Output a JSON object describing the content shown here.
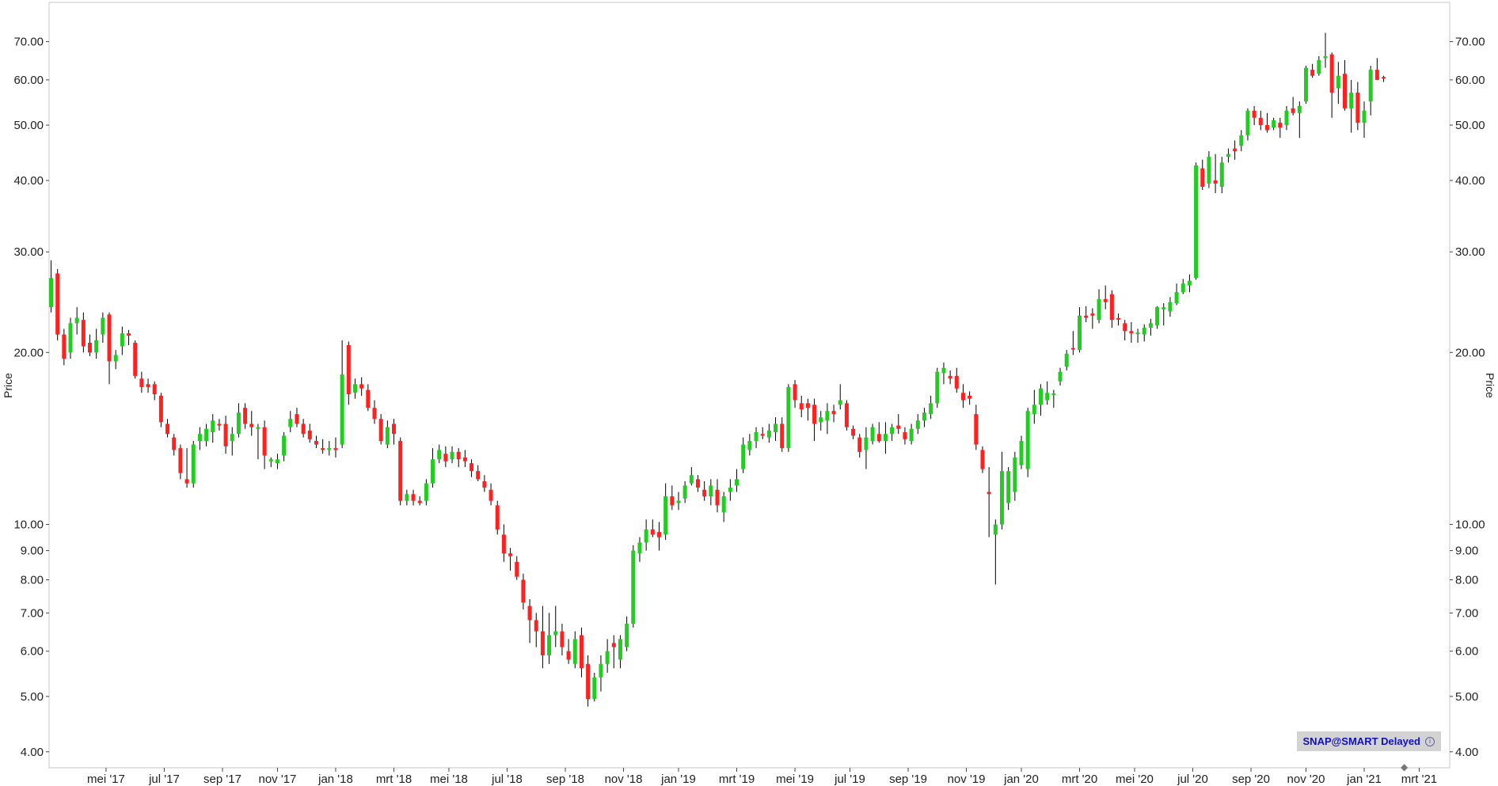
{
  "chart_data": {
    "type": "candlestick",
    "ylabel": "Price",
    "y_scale": "log",
    "ylim": [
      3.75,
      82
    ],
    "y_ticks": [
      "4.00",
      "5.00",
      "6.00",
      "7.00",
      "8.00",
      "9.00",
      "10.00",
      "20.00",
      "30.00",
      "40.00",
      "50.00",
      "60.00",
      "70.00"
    ],
    "x_ticks": [
      "mei '17",
      "jul '17",
      "sep '17",
      "nov '17",
      "jan '18",
      "mrt '18",
      "mei '18",
      "jul '18",
      "sep '18",
      "nov '18",
      "jan '19",
      "mrt '19",
      "mei '19",
      "jul '19",
      "sep '19",
      "nov '19",
      "jan '20",
      "mrt '20",
      "mei '20",
      "jul '20",
      "sep '20",
      "nov '20",
      "jan '21",
      "mrt '21"
    ],
    "x_tick_positions": [
      8.5,
      17.5,
      26.5,
      35,
      44,
      53,
      61.5,
      70.5,
      79.5,
      88.5,
      97,
      106,
      115,
      123.5,
      132.5,
      141.5,
      150,
      159,
      167.5,
      176.5,
      185.5,
      194,
      203,
      211.5
    ],
    "frequency": "weekly",
    "up_color": "#22cc22",
    "down_color": "#ff2020",
    "candles": [
      [
        24.0,
        29.0,
        23.5,
        27.0
      ],
      [
        27.5,
        28.0,
        21.0,
        21.5
      ],
      [
        21.5,
        22.0,
        19.0,
        19.5
      ],
      [
        20.0,
        23.0,
        19.5,
        22.5
      ],
      [
        22.5,
        24.0,
        21.5,
        23.0
      ],
      [
        22.8,
        23.5,
        20.0,
        20.5
      ],
      [
        20.8,
        21.5,
        19.7,
        20.0
      ],
      [
        20.0,
        22.0,
        19.5,
        21.0
      ],
      [
        21.5,
        23.5,
        20.8,
        23.0
      ],
      [
        23.3,
        23.5,
        17.6,
        19.3
      ],
      [
        19.3,
        20.2,
        18.7,
        19.8
      ],
      [
        20.5,
        22.2,
        19.8,
        21.6
      ],
      [
        21.6,
        21.9,
        20.6,
        21.4
      ],
      [
        20.8,
        21.0,
        18.0,
        18.2
      ],
      [
        18.0,
        18.5,
        17.0,
        17.4
      ],
      [
        17.6,
        18.0,
        17.0,
        17.4
      ],
      [
        17.6,
        17.8,
        16.5,
        16.9
      ],
      [
        16.8,
        17.0,
        14.8,
        15.1
      ],
      [
        15.0,
        15.3,
        14.2,
        14.4
      ],
      [
        14.2,
        14.4,
        13.2,
        13.5
      ],
      [
        13.6,
        13.8,
        12.0,
        12.3
      ],
      [
        12.0,
        13.6,
        11.6,
        11.8
      ],
      [
        11.8,
        14.0,
        11.6,
        13.8
      ],
      [
        14.0,
        14.8,
        13.5,
        14.4
      ],
      [
        14.0,
        15.0,
        13.7,
        14.7
      ],
      [
        14.5,
        15.6,
        13.9,
        15.2
      ],
      [
        15.0,
        15.3,
        14.6,
        14.9
      ],
      [
        15.0,
        15.5,
        13.3,
        13.7
      ],
      [
        14.0,
        14.8,
        13.2,
        14.4
      ],
      [
        14.4,
        16.3,
        14.2,
        15.7
      ],
      [
        16.0,
        16.3,
        14.7,
        15.0
      ],
      [
        15.0,
        15.8,
        14.3,
        14.8
      ],
      [
        14.7,
        15.0,
        13.0,
        14.8
      ],
      [
        14.8,
        15.2,
        12.5,
        13.2
      ],
      [
        12.9,
        13.1,
        12.6,
        13.0
      ],
      [
        12.8,
        13.3,
        12.5,
        13.0
      ],
      [
        13.2,
        14.5,
        12.9,
        14.3
      ],
      [
        14.8,
        15.8,
        14.5,
        15.3
      ],
      [
        15.6,
        16.0,
        14.8,
        15.0
      ],
      [
        15.0,
        15.3,
        14.2,
        14.4
      ],
      [
        14.6,
        15.0,
        13.9,
        14.1
      ],
      [
        14.0,
        14.3,
        13.6,
        13.8
      ],
      [
        13.6,
        14.1,
        13.3,
        13.5
      ],
      [
        13.5,
        14.0,
        13.2,
        13.6
      ],
      [
        13.6,
        14.2,
        13.1,
        13.5
      ],
      [
        13.8,
        21.0,
        13.6,
        18.3
      ],
      [
        20.6,
        20.9,
        16.2,
        16.9
      ],
      [
        17.0,
        18.0,
        16.6,
        17.6
      ],
      [
        17.6,
        18.1,
        16.8,
        17.3
      ],
      [
        17.2,
        17.6,
        15.8,
        16.0
      ],
      [
        16.0,
        16.5,
        15.0,
        15.3
      ],
      [
        15.3,
        15.6,
        13.8,
        14.0
      ],
      [
        13.8,
        15.2,
        13.6,
        14.8
      ],
      [
        15.0,
        15.3,
        13.8,
        14.4
      ],
      [
        14.0,
        14.2,
        10.8,
        11.0
      ],
      [
        11.0,
        11.5,
        10.8,
        11.3
      ],
      [
        11.3,
        11.5,
        10.8,
        11.0
      ],
      [
        11.0,
        11.2,
        10.8,
        10.9
      ],
      [
        11.0,
        12.0,
        10.8,
        11.8
      ],
      [
        11.8,
        13.6,
        11.6,
        13.0
      ],
      [
        13.0,
        13.8,
        12.8,
        13.5
      ],
      [
        13.3,
        13.7,
        12.6,
        12.9
      ],
      [
        13.0,
        13.7,
        12.8,
        13.4
      ],
      [
        13.4,
        13.6,
        12.6,
        13.0
      ],
      [
        13.1,
        13.5,
        12.6,
        12.9
      ],
      [
        12.8,
        13.0,
        12.1,
        12.4
      ],
      [
        12.4,
        12.7,
        11.9,
        12.0
      ],
      [
        11.9,
        12.2,
        11.4,
        11.6
      ],
      [
        11.5,
        11.8,
        10.8,
        11.0
      ],
      [
        10.8,
        11.0,
        9.6,
        9.8
      ],
      [
        9.6,
        10.0,
        8.6,
        8.9
      ],
      [
        8.9,
        9.1,
        8.3,
        8.8
      ],
      [
        8.6,
        8.8,
        8.0,
        8.1
      ],
      [
        8.0,
        8.2,
        7.1,
        7.3
      ],
      [
        7.2,
        7.4,
        6.2,
        6.8
      ],
      [
        6.8,
        7.0,
        6.1,
        6.5
      ],
      [
        6.5,
        7.2,
        5.6,
        5.9
      ],
      [
        5.9,
        7.0,
        5.7,
        6.4
      ],
      [
        6.4,
        7.2,
        6.1,
        6.5
      ],
      [
        6.5,
        6.7,
        5.9,
        6.1
      ],
      [
        6.0,
        6.3,
        5.7,
        5.8
      ],
      [
        5.7,
        6.5,
        5.6,
        6.3
      ],
      [
        6.4,
        6.6,
        5.4,
        5.6
      ],
      [
        5.7,
        5.9,
        4.8,
        4.95
      ],
      [
        4.95,
        5.5,
        4.9,
        5.4
      ],
      [
        5.4,
        5.9,
        5.1,
        5.7
      ],
      [
        5.7,
        6.3,
        5.5,
        6.0
      ],
      [
        6.2,
        6.4,
        5.6,
        6.1
      ],
      [
        5.8,
        6.4,
        5.6,
        6.3
      ],
      [
        6.1,
        6.9,
        6.0,
        6.7
      ],
      [
        6.7,
        9.2,
        6.6,
        9.0
      ],
      [
        8.9,
        9.5,
        8.6,
        9.3
      ],
      [
        9.3,
        10.2,
        9.0,
        9.8
      ],
      [
        9.8,
        10.2,
        9.5,
        9.6
      ],
      [
        9.7,
        10.1,
        9.0,
        9.5
      ],
      [
        9.6,
        11.8,
        9.4,
        11.2
      ],
      [
        11.2,
        11.7,
        10.6,
        10.8
      ],
      [
        10.9,
        11.4,
        10.6,
        11.0
      ],
      [
        11.1,
        11.9,
        10.9,
        11.7
      ],
      [
        11.8,
        12.6,
        11.7,
        12.2
      ],
      [
        12.0,
        12.2,
        11.4,
        11.6
      ],
      [
        11.5,
        11.9,
        11.0,
        11.2
      ],
      [
        11.2,
        12.0,
        10.8,
        11.7
      ],
      [
        11.5,
        12.0,
        10.5,
        10.8
      ],
      [
        10.5,
        11.4,
        10.1,
        11.2
      ],
      [
        11.4,
        12.0,
        11.0,
        11.6
      ],
      [
        11.7,
        12.5,
        11.4,
        12.0
      ],
      [
        12.5,
        14.2,
        12.3,
        13.8
      ],
      [
        13.5,
        14.4,
        13.2,
        14.0
      ],
      [
        14.0,
        14.8,
        13.6,
        14.5
      ],
      [
        14.4,
        14.8,
        14.1,
        14.3
      ],
      [
        14.2,
        15.0,
        13.9,
        14.6
      ],
      [
        14.5,
        15.4,
        14.0,
        15.0
      ],
      [
        15.0,
        15.4,
        13.4,
        13.6
      ],
      [
        13.6,
        17.6,
        13.4,
        17.4
      ],
      [
        17.6,
        17.9,
        16.0,
        16.5
      ],
      [
        16.3,
        16.8,
        15.4,
        15.9
      ],
      [
        16.3,
        16.6,
        15.2,
        16.0
      ],
      [
        16.2,
        16.6,
        14.0,
        15.0
      ],
      [
        15.1,
        15.8,
        14.6,
        15.4
      ],
      [
        15.2,
        16.3,
        14.4,
        15.8
      ],
      [
        15.8,
        16.2,
        15.1,
        15.6
      ],
      [
        16.2,
        17.6,
        15.9,
        16.5
      ],
      [
        16.3,
        16.5,
        14.6,
        14.8
      ],
      [
        14.7,
        14.9,
        14.1,
        14.3
      ],
      [
        14.2,
        14.4,
        13.1,
        13.4
      ],
      [
        13.5,
        14.8,
        12.5,
        14.2
      ],
      [
        14.0,
        15.0,
        13.8,
        14.8
      ],
      [
        14.4,
        15.1,
        13.9,
        14.0
      ],
      [
        14.0,
        15.1,
        13.3,
        14.4
      ],
      [
        14.4,
        15.0,
        14.0,
        14.8
      ],
      [
        14.9,
        15.6,
        14.4,
        14.7
      ],
      [
        14.5,
        14.8,
        13.8,
        14.1
      ],
      [
        14.0,
        15.0,
        13.8,
        14.7
      ],
      [
        14.7,
        15.6,
        14.4,
        15.2
      ],
      [
        15.2,
        16.0,
        14.8,
        15.7
      ],
      [
        15.6,
        16.8,
        15.3,
        16.3
      ],
      [
        16.3,
        18.8,
        16.0,
        18.5
      ],
      [
        18.4,
        19.2,
        17.6,
        18.8
      ],
      [
        18.2,
        18.6,
        17.6,
        18.0
      ],
      [
        18.2,
        18.8,
        17.0,
        17.3
      ],
      [
        17.0,
        17.6,
        16.0,
        16.5
      ],
      [
        16.8,
        17.1,
        16.2,
        16.6
      ],
      [
        15.6,
        16.2,
        13.5,
        13.8
      ],
      [
        13.5,
        13.7,
        12.3,
        12.5
      ],
      [
        11.4,
        12.6,
        9.5,
        11.3
      ],
      [
        9.6,
        10.2,
        7.85,
        10.0
      ],
      [
        10.0,
        13.4,
        9.8,
        12.4
      ],
      [
        10.9,
        12.6,
        10.6,
        12.4
      ],
      [
        11.4,
        13.4,
        11.0,
        13.1
      ],
      [
        12.7,
        14.3,
        12.5,
        14.0
      ],
      [
        12.5,
        16.0,
        12.1,
        15.8
      ],
      [
        15.6,
        17.2,
        15.0,
        16.2
      ],
      [
        16.2,
        17.6,
        15.5,
        17.3
      ],
      [
        16.5,
        17.8,
        16.2,
        17.0
      ],
      [
        16.9,
        17.2,
        16.0,
        16.9
      ],
      [
        17.8,
        18.8,
        17.5,
        18.5
      ],
      [
        18.9,
        20.2,
        18.6,
        19.9
      ],
      [
        20.3,
        21.8,
        19.8,
        20.2
      ],
      [
        20.2,
        24.0,
        20.0,
        23.2
      ],
      [
        23.2,
        24.1,
        22.6,
        23.0
      ],
      [
        23.4,
        23.9,
        22.0,
        23.2
      ],
      [
        22.8,
        25.8,
        22.5,
        24.8
      ],
      [
        24.8,
        26.2,
        23.8,
        24.5
      ],
      [
        25.3,
        25.7,
        22.1,
        22.8
      ],
      [
        22.9,
        23.4,
        22.3,
        22.8
      ],
      [
        22.5,
        22.8,
        21.0,
        21.8
      ],
      [
        21.8,
        22.6,
        20.8,
        21.6
      ],
      [
        21.6,
        22.0,
        20.8,
        21.6
      ],
      [
        21.5,
        22.4,
        20.9,
        22.1
      ],
      [
        22.1,
        22.9,
        21.4,
        22.5
      ],
      [
        22.3,
        24.1,
        22.0,
        24.0
      ],
      [
        23.8,
        24.4,
        22.3,
        24.0
      ],
      [
        23.6,
        25.0,
        23.1,
        24.5
      ],
      [
        24.4,
        26.4,
        24.2,
        25.5
      ],
      [
        25.5,
        26.9,
        25.3,
        26.4
      ],
      [
        26.2,
        27.4,
        25.5,
        26.7
      ],
      [
        27.0,
        43.0,
        26.8,
        42.5
      ],
      [
        42.0,
        43.5,
        38.5,
        39.0
      ],
      [
        39.5,
        45.0,
        38.8,
        44.0
      ],
      [
        40.0,
        44.5,
        38.0,
        39.5
      ],
      [
        39.0,
        44.0,
        38.0,
        43.0
      ],
      [
        44.0,
        45.5,
        43.0,
        44.5
      ],
      [
        45.5,
        47.0,
        43.5,
        45.0
      ],
      [
        46.0,
        49.0,
        45.0,
        48.0
      ],
      [
        48.0,
        53.5,
        47.0,
        53.0
      ],
      [
        53.0,
        54.0,
        50.0,
        51.5
      ],
      [
        51.5,
        53.0,
        49.0,
        50.0
      ],
      [
        50.0,
        52.5,
        48.5,
        49.0
      ],
      [
        49.5,
        51.5,
        49.0,
        51.0
      ],
      [
        50.5,
        51.5,
        47.5,
        49.5
      ],
      [
        50.0,
        54.0,
        49.0,
        53.0
      ],
      [
        53.5,
        56.0,
        52.0,
        52.5
      ],
      [
        52.5,
        55.0,
        47.5,
        54.0
      ],
      [
        55.0,
        63.5,
        54.5,
        63.0
      ],
      [
        62.5,
        64.0,
        60.5,
        61.0
      ],
      [
        61.5,
        66.0,
        61.0,
        65.0
      ],
      [
        65.5,
        72.5,
        63.0,
        66.0
      ],
      [
        66.5,
        67.0,
        51.5,
        57.0
      ],
      [
        58.0,
        64.5,
        54.5,
        61.0
      ],
      [
        61.5,
        65.0,
        53.0,
        53.5
      ],
      [
        53.5,
        60.0,
        48.5,
        57.0
      ],
      [
        57.0,
        59.5,
        49.0,
        50.5
      ],
      [
        50.5,
        55.0,
        47.5,
        53.0
      ],
      [
        55.0,
        63.5,
        52.0,
        62.5
      ],
      [
        62.5,
        65.5,
        60.0,
        60.0
      ],
      [
        60.5,
        61.0,
        59.5,
        60.2
      ]
    ]
  },
  "badge": {
    "text": "SNAP@SMART Delayed",
    "icon": "info-icon"
  },
  "scroll_handle_icon": "diamond-arrow-icon"
}
